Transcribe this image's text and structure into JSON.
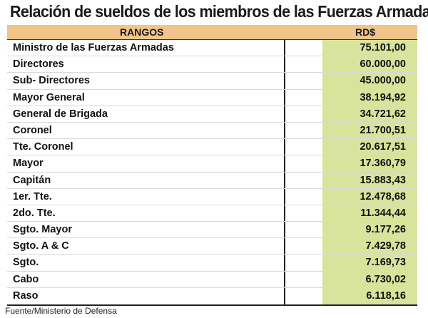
{
  "title": "Relación de sueldos de los miembros de las Fuerzas Armadas",
  "table": {
    "headers": {
      "rank": "RANGOS",
      "amount": "RD$"
    },
    "rows": [
      {
        "rank": "Ministro de las Fuerzas Armadas",
        "amount": "75.101,00"
      },
      {
        "rank": "Directores",
        "amount": "60.000,00"
      },
      {
        "rank": "Sub- Directores",
        "amount": "45.000,00"
      },
      {
        "rank": "Mayor General",
        "amount": "38.194,92"
      },
      {
        "rank": "General de Brigada",
        "amount": "34.721,62"
      },
      {
        "rank": "Coronel",
        "amount": "21.700,51"
      },
      {
        "rank": "Tte. Coronel",
        "amount": "20.617,51"
      },
      {
        "rank": "Mayor",
        "amount": "17.360,79"
      },
      {
        "rank": "Capitán",
        "amount": "15.883,43"
      },
      {
        "rank": "1er. Tte.",
        "amount": "12.478,68"
      },
      {
        "rank": "2do. Tte.",
        "amount": "11.344,44"
      },
      {
        "rank": "Sgto. Mayor",
        "amount": "9.177,26"
      },
      {
        "rank": "Sgto. A & C",
        "amount": "7.429,78"
      },
      {
        "rank": "Sgto.",
        "amount": "7.169,73"
      },
      {
        "rank": "Cabo",
        "amount": "6.730,02"
      },
      {
        "rank": "Raso",
        "amount": "6.118,16"
      }
    ]
  },
  "source": "Fuente/Ministerio de Defensa",
  "colors": {
    "header_bg": "#f1c48a",
    "amount_column_bg": "#d8e39c"
  }
}
